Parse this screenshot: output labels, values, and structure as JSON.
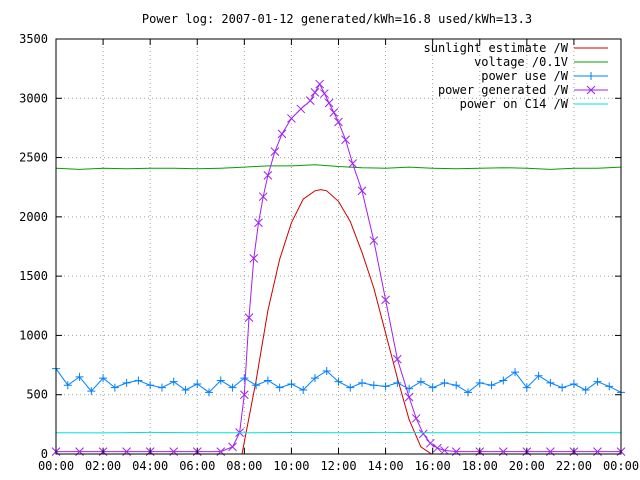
{
  "chart_data": {
    "type": "line",
    "title": "Power log: 2007-01-12 generated/kWh=16.8 used/kWh=13.3",
    "xlabel": "",
    "ylabel": "",
    "xlim": [
      0,
      24
    ],
    "ylim": [
      0,
      3500
    ],
    "x_ticks": [
      {
        "value": 0,
        "label": "00:00"
      },
      {
        "value": 2,
        "label": "02:00"
      },
      {
        "value": 4,
        "label": "04:00"
      },
      {
        "value": 6,
        "label": "06:00"
      },
      {
        "value": 8,
        "label": "08:00"
      },
      {
        "value": 10,
        "label": "10:00"
      },
      {
        "value": 12,
        "label": "12:00"
      },
      {
        "value": 14,
        "label": "14:00"
      },
      {
        "value": 16,
        "label": "16:00"
      },
      {
        "value": 18,
        "label": "18:00"
      },
      {
        "value": 20,
        "label": "20:00"
      },
      {
        "value": 22,
        "label": "22:00"
      },
      {
        "value": 24,
        "label": "00:00"
      }
    ],
    "y_ticks": [
      {
        "value": 0,
        "label": "0"
      },
      {
        "value": 500,
        "label": "500"
      },
      {
        "value": 1000,
        "label": "1000"
      },
      {
        "value": 1500,
        "label": "1500"
      },
      {
        "value": 2000,
        "label": "2000"
      },
      {
        "value": 2500,
        "label": "2500"
      },
      {
        "value": 3000,
        "label": "3000"
      },
      {
        "value": 3500,
        "label": "3500"
      }
    ],
    "grid": true,
    "legend_position": "top-right",
    "series": [
      {
        "name": "sunlight estimate /W",
        "color": "#cc0000",
        "marker": "none",
        "x": [
          7.9,
          8.5,
          9.0,
          9.5,
          10.0,
          10.5,
          11.0,
          11.25,
          11.5,
          12.0,
          12.5,
          13.0,
          13.5,
          14.0,
          14.5,
          15.0,
          15.5,
          15.95
        ],
        "y": [
          0,
          620,
          1210,
          1640,
          1950,
          2150,
          2220,
          2230,
          2220,
          2130,
          1960,
          1700,
          1400,
          1020,
          640,
          290,
          60,
          0
        ]
      },
      {
        "name": "voltage /0.1V",
        "color": "#00a000",
        "marker": "none",
        "x": [
          0,
          1,
          2,
          3,
          4,
          5,
          6,
          7,
          8,
          9,
          10,
          11,
          12,
          13,
          14,
          15,
          16,
          17,
          18,
          19,
          20,
          21,
          22,
          23,
          24
        ],
        "y": [
          2410,
          2400,
          2410,
          2405,
          2410,
          2410,
          2405,
          2410,
          2420,
          2430,
          2430,
          2440,
          2425,
          2415,
          2410,
          2420,
          2410,
          2405,
          2410,
          2415,
          2410,
          2400,
          2410,
          2410,
          2420
        ]
      },
      {
        "name": "power use /W",
        "color": "#0080ff",
        "marker": "+",
        "x": [
          0,
          0.5,
          1,
          1.5,
          2,
          2.5,
          3,
          3.5,
          4,
          4.5,
          5,
          5.5,
          6,
          6.5,
          7,
          7.5,
          8,
          8.5,
          9,
          9.5,
          10,
          10.5,
          11,
          11.5,
          12,
          12.5,
          13,
          13.5,
          14,
          14.5,
          15,
          15.5,
          16,
          16.5,
          17,
          17.5,
          18,
          18.5,
          19,
          19.5,
          20,
          20.5,
          21,
          21.5,
          22,
          22.5,
          23,
          23.5,
          24
        ],
        "y": [
          720,
          580,
          650,
          530,
          640,
          560,
          600,
          620,
          580,
          560,
          610,
          540,
          590,
          520,
          620,
          560,
          640,
          580,
          620,
          560,
          590,
          540,
          640,
          700,
          610,
          560,
          600,
          580,
          570,
          600,
          550,
          610,
          560,
          600,
          580,
          520,
          600,
          580,
          620,
          690,
          560,
          660,
          600,
          560,
          590,
          540,
          610,
          570,
          520
        ]
      },
      {
        "name": "power generated /W",
        "color": "#a020f0",
        "marker": "x",
        "x": [
          0,
          1,
          2,
          3,
          4,
          5,
          6,
          7,
          7.5,
          7.8,
          8.0,
          8.2,
          8.4,
          8.6,
          8.8,
          9.0,
          9.3,
          9.6,
          10.0,
          10.4,
          10.8,
          11.0,
          11.2,
          11.4,
          11.6,
          11.8,
          12.0,
          12.3,
          12.6,
          13.0,
          13.5,
          14.0,
          14.5,
          15.0,
          15.3,
          15.6,
          15.9,
          16.2,
          16.5,
          17.0,
          18,
          19,
          20,
          21,
          22,
          23,
          24
        ],
        "y": [
          20,
          20,
          20,
          20,
          20,
          20,
          20,
          20,
          60,
          180,
          500,
          1150,
          1650,
          1950,
          2170,
          2350,
          2550,
          2700,
          2830,
          2910,
          2980,
          3050,
          3120,
          3040,
          2960,
          2880,
          2800,
          2650,
          2450,
          2220,
          1800,
          1300,
          800,
          480,
          300,
          170,
          90,
          50,
          30,
          20,
          20,
          20,
          20,
          20,
          20,
          20,
          20
        ]
      },
      {
        "name": "power on C14 /W",
        "color": "#00e0e0",
        "marker": "none",
        "x": [
          0,
          2,
          4,
          6,
          8,
          10,
          12,
          14,
          16,
          18,
          20,
          22,
          24
        ],
        "y": [
          180,
          178,
          182,
          180,
          179,
          181,
          180,
          182,
          180,
          179,
          181,
          180,
          180
        ]
      }
    ]
  }
}
